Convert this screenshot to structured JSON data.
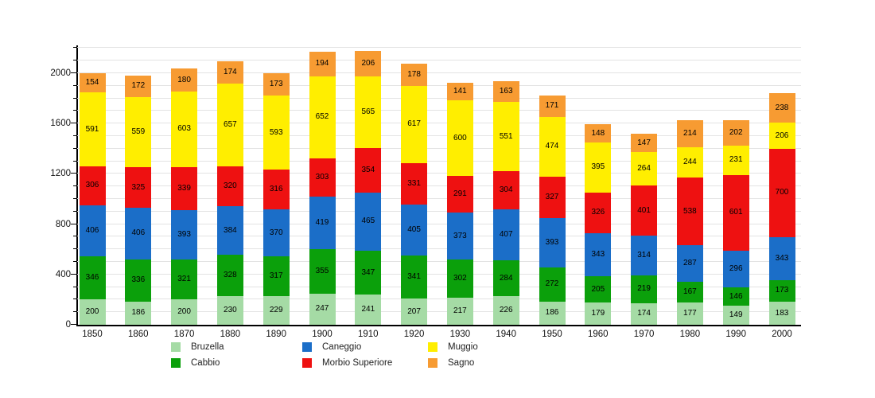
{
  "chart_data": {
    "type": "bar",
    "stacked": true,
    "title": "",
    "xlabel": "",
    "ylabel": "",
    "categories": [
      "1850",
      "1860",
      "1870",
      "1880",
      "1890",
      "1900",
      "1910",
      "1920",
      "1930",
      "1940",
      "1950",
      "1960",
      "1970",
      "1980",
      "1990",
      "2000"
    ],
    "series": [
      {
        "name": "Bruzella",
        "color": "#a5dba5",
        "values": [
          200,
          186,
          200,
          230,
          229,
          247,
          241,
          207,
          217,
          226,
          186,
          179,
          174,
          177,
          149,
          183
        ]
      },
      {
        "name": "Cabbio",
        "color": "#0ba00b",
        "values": [
          346,
          336,
          321,
          328,
          317,
          355,
          347,
          341,
          302,
          284,
          272,
          205,
          219,
          167,
          146,
          173
        ]
      },
      {
        "name": "Caneggio",
        "color": "#1b6ec8",
        "values": [
          406,
          406,
          393,
          384,
          370,
          419,
          465,
          405,
          373,
          407,
          393,
          343,
          314,
          287,
          296,
          343
        ]
      },
      {
        "name": "Morbio Superiore",
        "color": "#ee1111",
        "values": [
          306,
          325,
          339,
          320,
          316,
          303,
          354,
          331,
          291,
          304,
          327,
          326,
          401,
          538,
          601,
          700
        ]
      },
      {
        "name": "Muggio",
        "color": "#ffee00",
        "values": [
          591,
          559,
          603,
          657,
          593,
          652,
          565,
          617,
          600,
          551,
          474,
          395,
          264,
          244,
          231,
          206
        ]
      },
      {
        "name": "Sagno",
        "color": "#f79b32",
        "values": [
          154,
          172,
          180,
          174,
          173,
          194,
          206,
          178,
          141,
          163,
          171,
          148,
          147,
          214,
          202,
          238
        ]
      }
    ],
    "y_axis": {
      "major_tick_labels": [
        "0",
        "400",
        "800",
        "1200",
        "1600",
        "2000"
      ],
      "major_tick_values": [
        0,
        400,
        800,
        1200,
        1600,
        2000
      ],
      "minor_step": 100,
      "axis_max": 2200,
      "ylim": [
        0,
        2221
      ]
    },
    "grid": "horizontal, every 100 units, light gray",
    "legend": {
      "position": "bottom",
      "columns": [
        [
          "Bruzella",
          "Cabbio"
        ],
        [
          "Caneggio",
          "Morbio Superiore"
        ],
        [
          "Muggio",
          "Sagno"
        ]
      ]
    },
    "value_labels": "inside each segment, black"
  }
}
